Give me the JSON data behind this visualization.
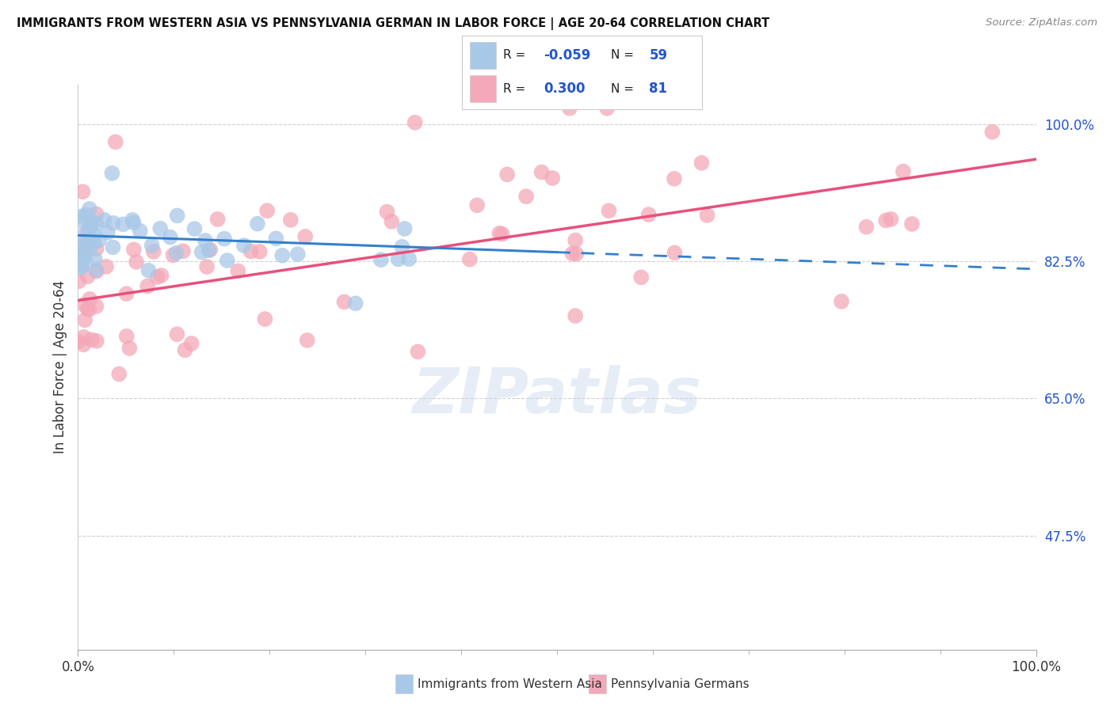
{
  "title": "IMMIGRANTS FROM WESTERN ASIA VS PENNSYLVANIA GERMAN IN LABOR FORCE | AGE 20-64 CORRELATION CHART",
  "source": "Source: ZipAtlas.com",
  "ylabel": "In Labor Force | Age 20-64",
  "xlim": [
    0.0,
    1.0
  ],
  "ylim": [
    0.33,
    1.05
  ],
  "yticks": [
    0.475,
    0.65,
    0.825,
    1.0
  ],
  "ytick_labels": [
    "47.5%",
    "65.0%",
    "82.5%",
    "100.0%"
  ],
  "xtick_labels": [
    "0.0%",
    "100.0%"
  ],
  "color_blue": "#a8c8e8",
  "color_pink": "#f4a8b8",
  "watermark": "ZIPatlas"
}
